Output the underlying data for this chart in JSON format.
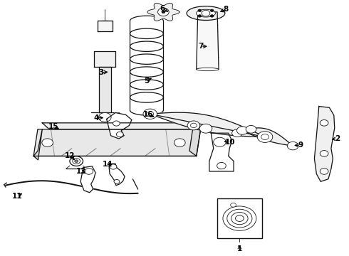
{
  "background_color": "#ffffff",
  "line_color": "#111111",
  "figsize": [
    4.9,
    3.6
  ],
  "dpi": 100,
  "label_positions": {
    "1": [
      0.685,
      0.04,
      0.685,
      0.018
    ],
    "2": [
      0.96,
      0.43,
      0.98,
      0.43
    ],
    "3": [
      0.28,
      0.68,
      0.255,
      0.68
    ],
    "4": [
      0.285,
      0.55,
      0.26,
      0.55
    ],
    "5": [
      0.43,
      0.66,
      0.415,
      0.64
    ],
    "6": [
      0.47,
      0.95,
      0.455,
      0.965
    ],
    "7": [
      0.59,
      0.81,
      0.57,
      0.81
    ],
    "8": [
      0.6,
      0.955,
      0.622,
      0.968
    ],
    "9": [
      0.82,
      0.435,
      0.845,
      0.435
    ],
    "10": [
      0.625,
      0.44,
      0.648,
      0.44
    ],
    "11": [
      0.08,
      0.235,
      0.06,
      0.22
    ],
    "12": [
      0.225,
      0.385,
      0.21,
      0.4
    ],
    "13": [
      0.245,
      0.34,
      0.228,
      0.328
    ],
    "14": [
      0.325,
      0.355,
      0.31,
      0.368
    ],
    "15": [
      0.18,
      0.49,
      0.16,
      0.5
    ],
    "16": [
      0.45,
      0.535,
      0.428,
      0.548
    ]
  }
}
